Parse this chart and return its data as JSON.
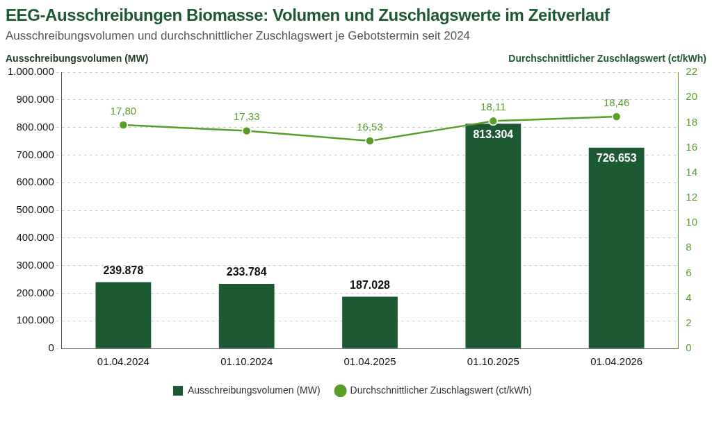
{
  "chart_data": {
    "type": "bar",
    "title": "EEG-Ausschreibungen Biomasse: Volumen und Zuschlagswerte im Zeitverlauf",
    "subtitle": "Ausschreibungsvolumen und durchschnittlicher Zuschlagswert je Gebotstermin seit 2024",
    "ylabel": "Ausschreibungsvolumen (MW)",
    "y2label": "Durchschnittlicher Zuschlagswert (ct/kWh)",
    "categories": [
      "01.04.2024",
      "01.10.2024",
      "01.04.2025",
      "01.10.2025",
      "01.04.2026"
    ],
    "series": [
      {
        "name": "Ausschreibungsvolumen (MW)",
        "color": "#1d5a33",
        "values": [
          239878,
          233784,
          187028,
          813304,
          726653
        ],
        "value_labels": [
          "239.878",
          "233.784",
          "187.028",
          "813.304",
          "726.653"
        ]
      },
      {
        "name": "Durchschnittlicher Zuschlagswert (ct/kWh)",
        "type": "line",
        "axis": "y2",
        "color": "#5a9e2a",
        "marker": "circle",
        "line_style": "solid",
        "values": [
          17.8,
          17.33,
          16.53,
          18.11,
          18.46
        ],
        "value_labels": [
          "17,80",
          "17,33",
          "16,53",
          "18,11",
          "18,46"
        ]
      }
    ],
    "ylim": [
      0,
      1000000
    ],
    "yticks": [
      {
        "value": 0,
        "label": "0"
      },
      {
        "value": 100000,
        "label": "100.000"
      },
      {
        "value": 200000,
        "label": "200.000"
      },
      {
        "value": 300000,
        "label": "300.000"
      },
      {
        "value": 400000,
        "label": "400.000"
      },
      {
        "value": 500000,
        "label": "500.000"
      },
      {
        "value": 600000,
        "label": "600.000"
      },
      {
        "value": 700000,
        "label": "700.000"
      },
      {
        "value": 800000,
        "label": "800.000"
      },
      {
        "value": 900000,
        "label": "900.000"
      },
      {
        "value": 1000000,
        "label": "1.000.000"
      }
    ],
    "y2lim": [
      0,
      22
    ],
    "y2ticks": [
      0,
      2,
      4,
      6,
      8,
      10,
      12,
      14,
      16,
      18,
      20,
      22
    ],
    "grid": "y",
    "legend": "bottom"
  }
}
